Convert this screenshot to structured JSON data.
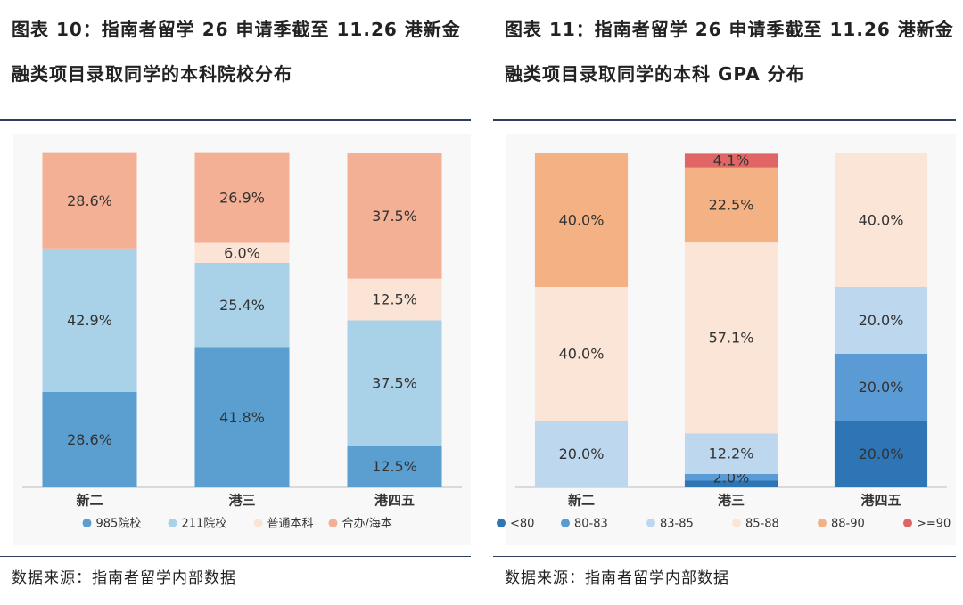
{
  "chart_data": [
    {
      "type": "stacked-bar",
      "title": "图表 10：指南者留学 26 申请季截至 11.26 港新金融类项目录取同学的本科院校分布",
      "source": "数据来源：指南者留学内部数据",
      "categories": [
        "新二",
        "港三",
        "港四五"
      ],
      "ylim": [
        0,
        100
      ],
      "series": [
        {
          "name": "985院校",
          "color": "#5b9fd0",
          "values": [
            28.6,
            41.8,
            12.5
          ],
          "value_labels": [
            "28.6%",
            "41.8%",
            "12.5%"
          ]
        },
        {
          "name": "211院校",
          "color": "#a9d2e9",
          "values": [
            42.9,
            25.4,
            37.5
          ],
          "value_labels": [
            "42.9%",
            "25.4%",
            "37.5%"
          ]
        },
        {
          "name": "普通本科",
          "color": "#fbe3d6",
          "values": [
            0,
            6.0,
            12.5
          ],
          "value_labels": [
            null,
            "6.0%",
            "12.5%"
          ]
        },
        {
          "name": "合办/海本",
          "color": "#f4b094",
          "values": [
            28.6,
            26.9,
            37.5
          ],
          "value_labels": [
            "28.6%",
            "26.9%",
            "37.5%"
          ]
        }
      ]
    },
    {
      "type": "stacked-bar",
      "title": "图表 11：指南者留学 26 申请季截至 11.26 港新金融类项目录取同学的本科 GPA 分布",
      "source": "数据来源：指南者留学内部数据",
      "categories": [
        "新二",
        "港三",
        "港四五"
      ],
      "ylim": [
        0,
        100
      ],
      "series": [
        {
          "name": "<80",
          "color": "#2e75b6",
          "values": [
            0,
            2.0,
            20.0
          ],
          "value_labels": [
            null,
            null,
            "20.0%"
          ]
        },
        {
          "name": "80-83",
          "color": "#5b9bd5",
          "values": [
            0,
            2.0,
            20.0
          ],
          "value_labels": [
            null,
            "2.0%",
            "20.0%"
          ]
        },
        {
          "name": "83-85",
          "color": "#bdd7ee",
          "values": [
            20.0,
            12.2,
            20.0
          ],
          "value_labels": [
            "20.0%",
            "12.2%",
            "20.0%"
          ]
        },
        {
          "name": "85-88",
          "color": "#fbe5d6",
          "values": [
            40.0,
            57.1,
            40.0
          ],
          "value_labels": [
            "40.0%",
            "57.1%",
            "40.0%"
          ]
        },
        {
          "name": "88-90",
          "color": "#f4b183",
          "values": [
            40.0,
            22.5,
            0
          ],
          "value_labels": [
            "40.0%",
            "22.5%",
            null
          ]
        },
        {
          "name": ">=90",
          "color": "#e06666",
          "values": [
            0,
            4.1,
            0
          ],
          "value_labels": [
            null,
            "4.1%",
            null
          ]
        }
      ]
    }
  ]
}
